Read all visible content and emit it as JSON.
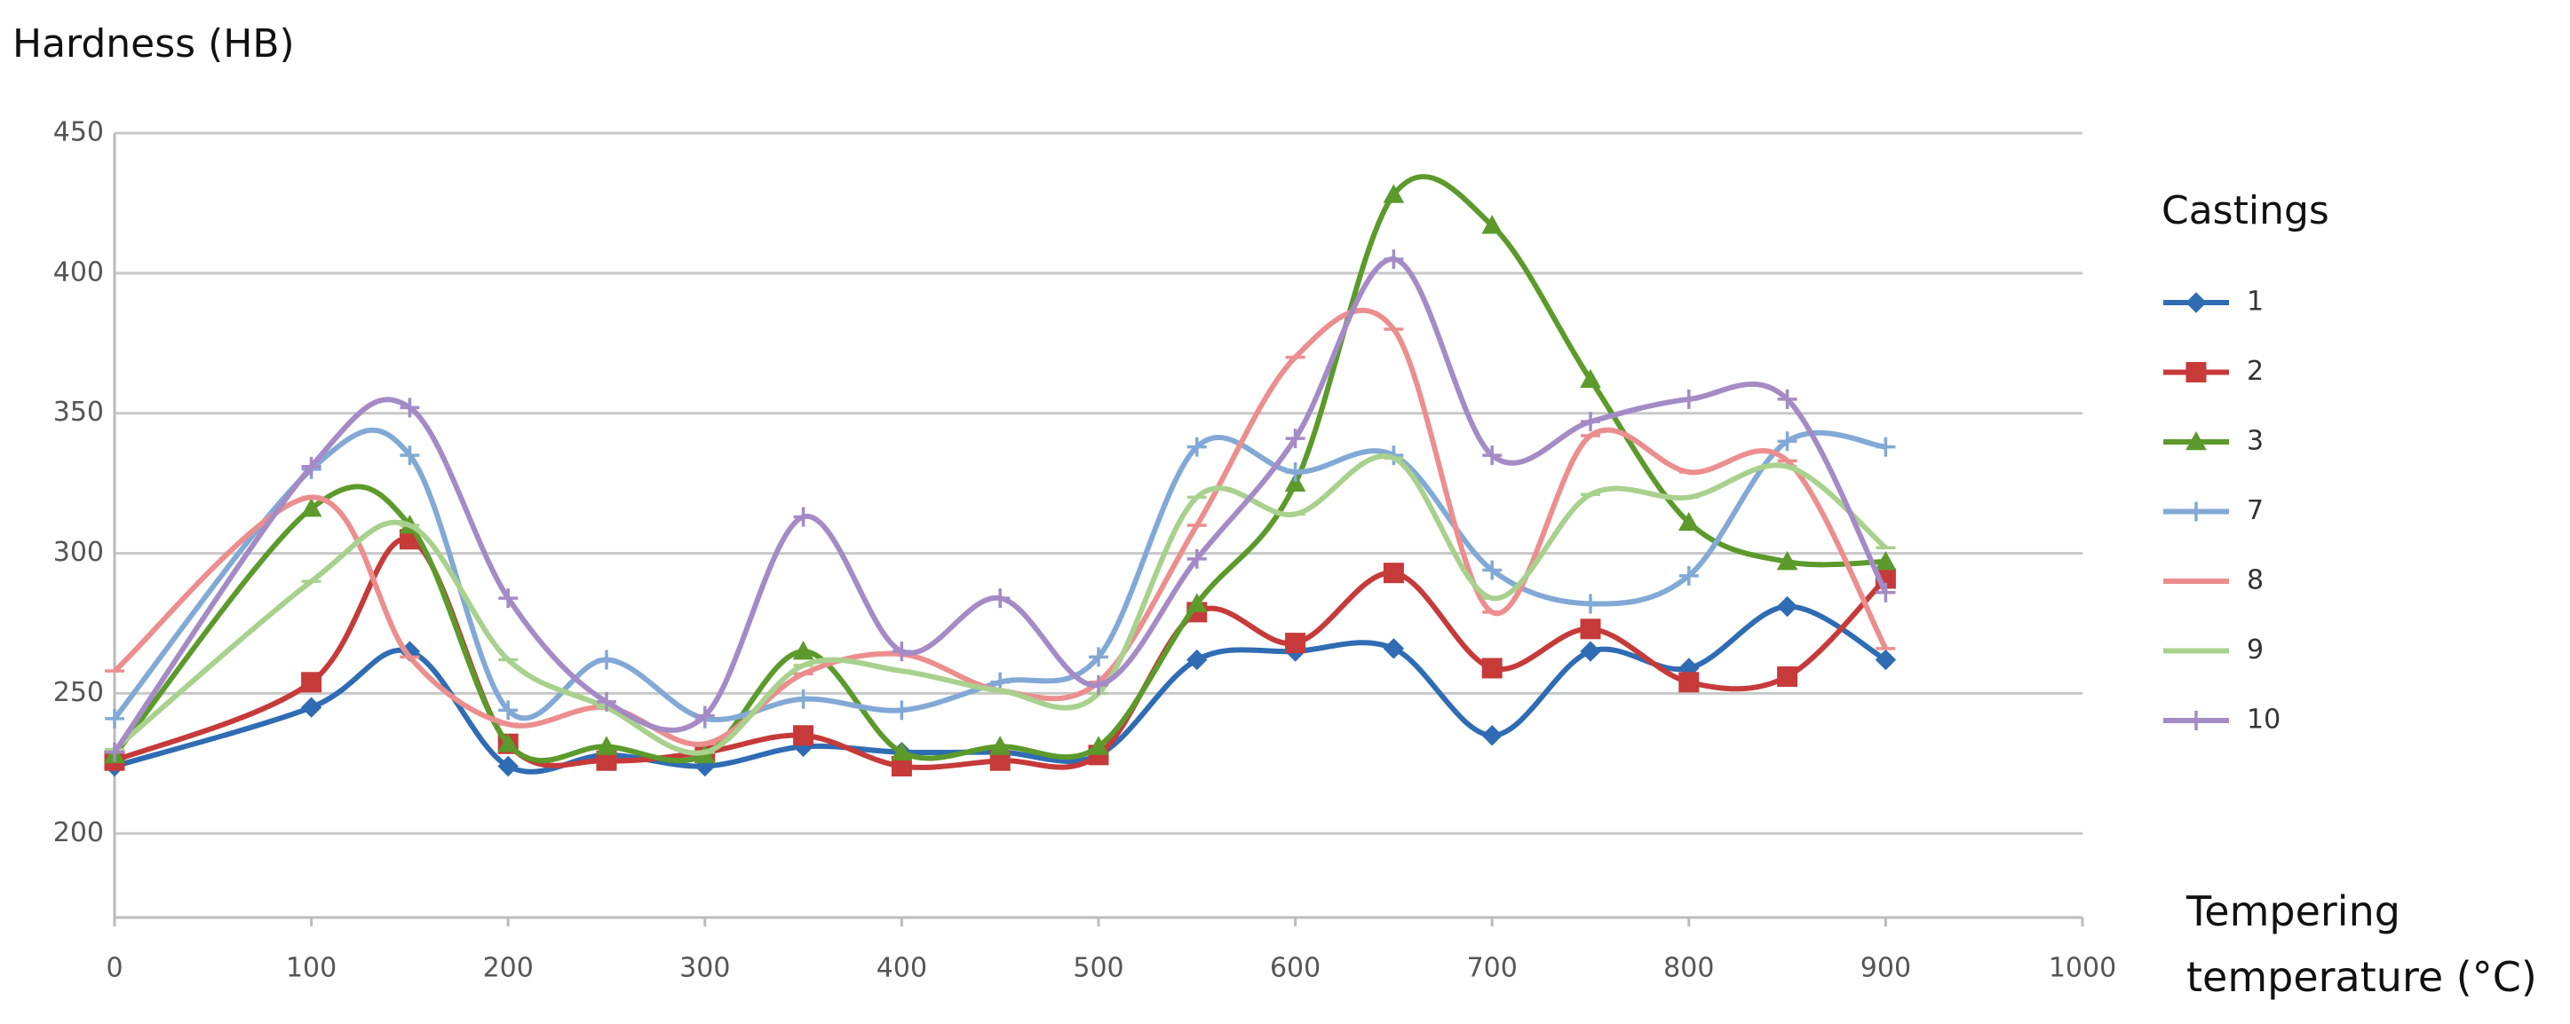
{
  "chart_data": {
    "type": "line",
    "smooth": true,
    "ylabel": "Hardness (HB)",
    "xlabel": "Tempering temperature (°C)",
    "legend_title": "Castings",
    "legend": "right",
    "grid": true,
    "x": [
      0,
      100,
      150,
      200,
      250,
      300,
      350,
      400,
      450,
      500,
      550,
      600,
      650,
      700,
      750,
      800,
      850,
      900
    ],
    "xlim": [
      0,
      1000
    ],
    "xticks": [
      0,
      100,
      200,
      300,
      400,
      500,
      600,
      700,
      800,
      900,
      1000
    ],
    "ylim": [
      170,
      450
    ],
    "yticks": [
      200,
      250,
      300,
      350,
      400,
      450
    ],
    "series": [
      {
        "name": "1",
        "color": "#2f6cb3",
        "marker": "diamond",
        "values": [
          224,
          245,
          265,
          224,
          228,
          224,
          231,
          229,
          229,
          228,
          262,
          265,
          266,
          235,
          265,
          259,
          281,
          262
        ]
      },
      {
        "name": "2",
        "color": "#c63a3a",
        "marker": "square",
        "values": [
          226,
          254,
          305,
          232,
          226,
          229,
          235,
          224,
          226,
          228,
          279,
          268,
          293,
          259,
          273,
          254,
          256,
          291
        ]
      },
      {
        "name": "3",
        "color": "#5b9a2b",
        "marker": "triangle",
        "values": [
          228,
          316,
          310,
          232,
          231,
          228,
          265,
          229,
          231,
          231,
          282,
          325,
          428,
          417,
          362,
          311,
          297,
          297
        ]
      },
      {
        "name": "7",
        "color": "#82a9d6",
        "marker": "plus",
        "values": [
          241,
          330,
          335,
          244,
          262,
          241,
          248,
          244,
          254,
          263,
          338,
          329,
          335,
          294,
          282,
          292,
          340,
          338
        ]
      },
      {
        "name": "8",
        "color": "#ec8e8e",
        "marker": "dash",
        "values": [
          258,
          320,
          263,
          239,
          245,
          232,
          257,
          264,
          251,
          254,
          310,
          370,
          380,
          279,
          342,
          329,
          333,
          266
        ]
      },
      {
        "name": "9",
        "color": "#a9d18e",
        "marker": "dash",
        "values": [
          230,
          290,
          310,
          262,
          245,
          229,
          260,
          258,
          251,
          250,
          320,
          314,
          334,
          284,
          321,
          320,
          331,
          302
        ]
      },
      {
        "name": "10",
        "color": "#a48bc6",
        "marker": "plus",
        "values": [
          229,
          331,
          352,
          284,
          247,
          242,
          313,
          265,
          284,
          253,
          298,
          341,
          405,
          335,
          347,
          355,
          355,
          286
        ]
      }
    ]
  }
}
